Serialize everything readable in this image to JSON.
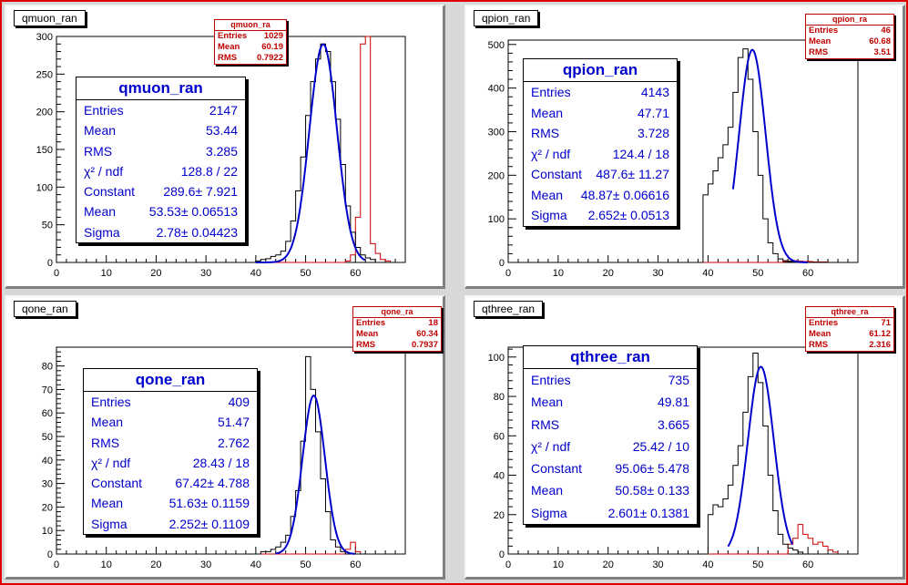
{
  "pads": [
    {
      "title": "qmuon_ran",
      "red_stats": {
        "name": "qmuon_ra",
        "entries": "1029",
        "mean": "60.19",
        "rms": "0.7922"
      },
      "blue_stats": {
        "name": "qmuon_ran",
        "rows": [
          {
            "label": "Entries",
            "value": "2147"
          },
          {
            "label": "Mean",
            "value": "53.44"
          },
          {
            "label": "RMS",
            "value": "3.285"
          },
          {
            "label": "χ² / ndf",
            "value": "128.8 / 22"
          },
          {
            "label": "Constant",
            "value": "289.6± 7.921"
          },
          {
            "label": "Mean",
            "value": "53.53± 0.06513"
          },
          {
            "label": "Sigma",
            "value": "2.78± 0.04423"
          }
        ]
      }
    },
    {
      "title": "qpion_ran",
      "red_stats": {
        "name": "qpion_ra",
        "entries": "46",
        "mean": "60.68",
        "rms": "3.51"
      },
      "blue_stats": {
        "name": "qpion_ran",
        "rows": [
          {
            "label": "Entries",
            "value": "4143"
          },
          {
            "label": "Mean",
            "value": "47.71"
          },
          {
            "label": "RMS",
            "value": "3.728"
          },
          {
            "label": "χ² / ndf",
            "value": "124.4 / 18"
          },
          {
            "label": "Constant",
            "value": "487.6± 11.27"
          },
          {
            "label": "Mean",
            "value": "48.87± 0.06616"
          },
          {
            "label": "Sigma",
            "value": "2.652± 0.0513"
          }
        ]
      }
    },
    {
      "title": "qone_ran",
      "red_stats": {
        "name": "qone_ra",
        "entries": "18",
        "mean": "60.34",
        "rms": "0.7937"
      },
      "blue_stats": {
        "name": "qone_ran",
        "rows": [
          {
            "label": "Entries",
            "value": "409"
          },
          {
            "label": "Mean",
            "value": "51.47"
          },
          {
            "label": "RMS",
            "value": "2.762"
          },
          {
            "label": "χ² / ndf",
            "value": "28.43 / 18"
          },
          {
            "label": "Constant",
            "value": "67.42± 4.788"
          },
          {
            "label": "Mean",
            "value": "51.63± 0.1159"
          },
          {
            "label": "Sigma",
            "value": "2.252± 0.1109"
          }
        ]
      }
    },
    {
      "title": "qthree_ran",
      "red_stats": {
        "name": "qthree_ra",
        "entries": "71",
        "mean": "61.12",
        "rms": "2.316"
      },
      "blue_stats": {
        "name": "qthree_ran",
        "rows": [
          {
            "label": "Entries",
            "value": "735"
          },
          {
            "label": "Mean",
            "value": "49.81"
          },
          {
            "label": "RMS",
            "value": "3.665"
          },
          {
            "label": "χ² / ndf",
            "value": "25.42 / 10"
          },
          {
            "label": "Constant",
            "value": "95.06± 5.478"
          },
          {
            "label": "Mean",
            "value": "50.58± 0.133"
          },
          {
            "label": "Sigma",
            "value": "2.601± 0.1381"
          }
        ]
      }
    }
  ],
  "chart_data": [
    {
      "type": "histogram",
      "title": "qmuon_ran",
      "xlim": [
        0,
        70
      ],
      "ylim": [
        0,
        300
      ],
      "xticks": [
        0,
        10,
        20,
        30,
        40,
        50,
        60
      ],
      "yticks": [
        0,
        50,
        100,
        150,
        200,
        250,
        300
      ],
      "bin_width": 1,
      "black_hist": {
        "x_start": 40,
        "counts": [
          2,
          4,
          5,
          8,
          10,
          15,
          28,
          55,
          95,
          140,
          195,
          240,
          270,
          290,
          280,
          240,
          190,
          130,
          75,
          40,
          20,
          10,
          6,
          4
        ]
      },
      "red_hist": {
        "x_start": 56,
        "counts": [
          0,
          0,
          2,
          10,
          60,
          290,
          300,
          25,
          12,
          4,
          2
        ]
      },
      "fit": {
        "constant": 289.6,
        "mean": 53.53,
        "sigma": 2.78,
        "x_range": [
          40,
          62
        ]
      },
      "colors": {
        "data": "#000000",
        "overlay": "#cc0000",
        "fit": "#0000cc"
      }
    },
    {
      "type": "histogram",
      "title": "qpion_ran",
      "xlim": [
        0,
        70
      ],
      "ylim": [
        0,
        510
      ],
      "xticks": [
        0,
        10,
        20,
        30,
        40,
        50,
        60
      ],
      "yticks": [
        0,
        100,
        200,
        300,
        400,
        500
      ],
      "bin_width": 1,
      "black_hist": {
        "x_start": 39,
        "counts": [
          155,
          180,
          210,
          240,
          270,
          310,
          390,
          470,
          490,
          420,
          300,
          200,
          100,
          45,
          20,
          8,
          4,
          2,
          1
        ]
      },
      "red_hist": {
        "x_start": 55,
        "counts": [
          2,
          3,
          4,
          3,
          2,
          2,
          1,
          1,
          1,
          0
        ]
      },
      "fit": {
        "constant": 487.6,
        "mean": 48.87,
        "sigma": 2.652,
        "x_range": [
          45,
          60
        ]
      },
      "colors": {
        "data": "#000000",
        "overlay": "#cc0000",
        "fit": "#0000cc"
      }
    },
    {
      "type": "histogram",
      "title": "qone_ran",
      "xlim": [
        0,
        70
      ],
      "ylim": [
        0,
        88
      ],
      "xticks": [
        0,
        10,
        20,
        30,
        40,
        50,
        60
      ],
      "yticks": [
        0,
        10,
        20,
        30,
        40,
        50,
        60,
        70,
        80
      ],
      "bin_width": 1,
      "black_hist": {
        "x_start": 41,
        "counts": [
          1,
          1,
          2,
          3,
          5,
          8,
          16,
          27,
          48,
          84,
          70,
          52,
          32,
          18,
          6,
          3,
          1,
          0
        ]
      },
      "red_hist": {
        "x_start": 56,
        "counts": [
          0,
          0,
          2,
          5,
          1,
          0
        ]
      },
      "fit": {
        "constant": 67.42,
        "mean": 51.63,
        "sigma": 2.252,
        "x_range": [
          44,
          60
        ]
      },
      "colors": {
        "data": "#000000",
        "overlay": "#cc0000",
        "fit": "#0000cc"
      }
    },
    {
      "type": "histogram",
      "title": "qthree_ran",
      "xlim": [
        0,
        70
      ],
      "ylim": [
        0,
        105
      ],
      "xticks": [
        0,
        10,
        20,
        30,
        40,
        50,
        60
      ],
      "yticks": [
        0,
        20,
        40,
        60,
        80,
        100
      ],
      "bin_width": 1,
      "black_hist": {
        "x_start": 40,
        "counts": [
          20,
          25,
          24,
          28,
          35,
          45,
          55,
          72,
          90,
          102,
          87,
          65,
          40,
          22,
          10,
          5,
          3,
          2,
          1
        ]
      },
      "red_hist": {
        "x_start": 56,
        "counts": [
          5,
          8,
          15,
          10,
          8,
          5,
          6,
          4,
          2,
          1
        ]
      },
      "fit": {
        "constant": 95.06,
        "mean": 50.58,
        "sigma": 2.601,
        "x_range": [
          44,
          57
        ]
      },
      "colors": {
        "data": "#000000",
        "overlay": "#cc0000",
        "fit": "#0000cc"
      }
    }
  ]
}
